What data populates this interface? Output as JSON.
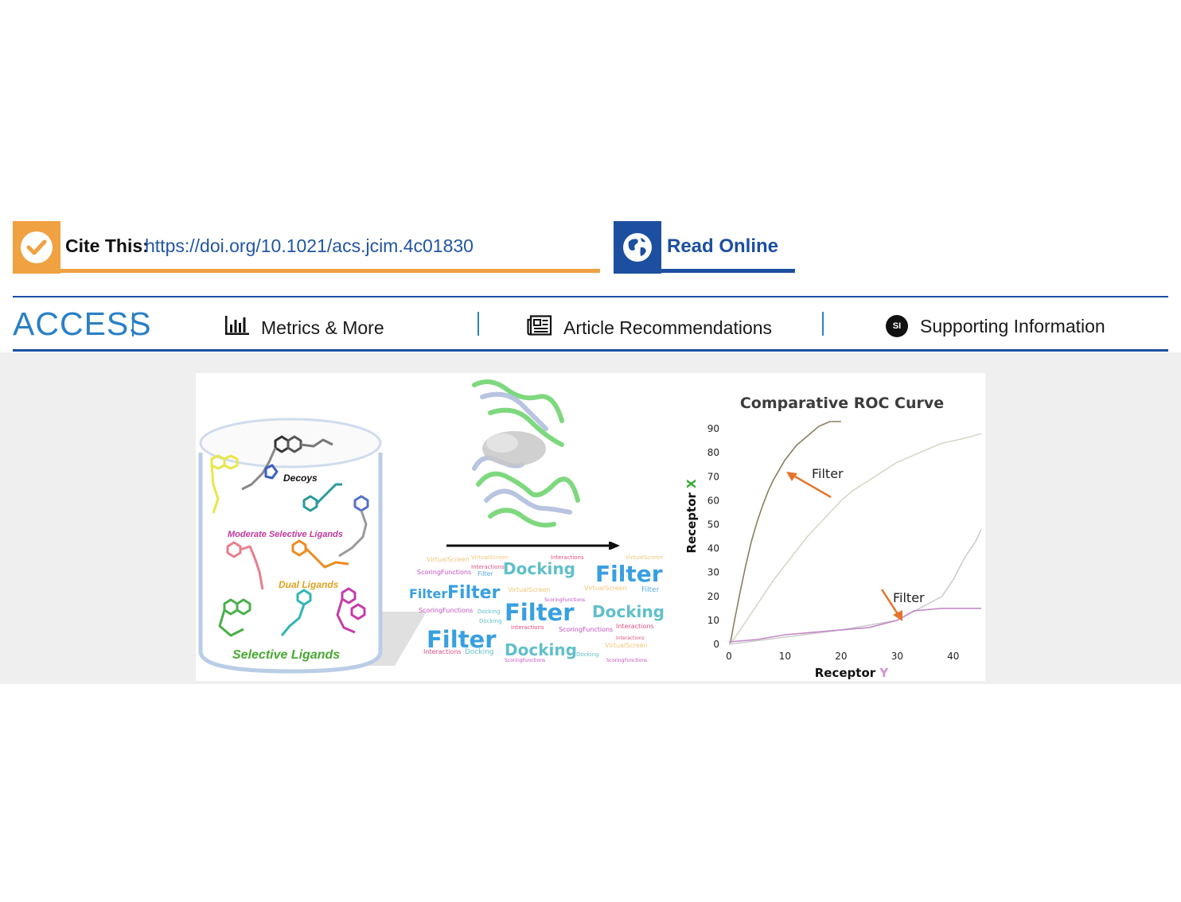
{
  "cite": {
    "label": "Cite This:",
    "doi": "https://doi.org/10.1021/acs.jcim.4c01830"
  },
  "read_online": {
    "label": "Read Online"
  },
  "access": {
    "label": "ACCESS"
  },
  "nav": {
    "metrics": "Metrics & More",
    "recommendations": "Article Recommendations",
    "supporting": "Supporting Information",
    "si_badge": "SI"
  },
  "colors": {
    "orange": "#f0a142",
    "blue": "#1c4fa0",
    "access_blue": "#2b80c4",
    "band_gray": "#efefef"
  },
  "icons": [
    "checkmark-icon",
    "globe-icon",
    "bar-chart-icon",
    "newspaper-icon",
    "si-icon"
  ],
  "toc_graphic": {
    "database": {
      "decoys": "Decoys",
      "moderate": "Moderate Selective Ligands",
      "dual": "Dual Ligands",
      "selective": "Selective Ligands"
    },
    "word_cloud": [
      {
        "text": "VirtualScreen",
        "c": "#f2c77a",
        "s": 8
      },
      {
        "text": "VirtualScreen",
        "c": "#f2c77a",
        "s": 7
      },
      {
        "text": "Interactions",
        "c": "#e0507e",
        "s": 7
      },
      {
        "text": "VirtualScreen",
        "c": "#f2c77a",
        "s": 7
      },
      {
        "text": "Interactions",
        "c": "#e0507e",
        "s": 7
      },
      {
        "text": "ScoringFunctions",
        "c": "#c34fc0",
        "s": 8
      },
      {
        "text": "Filter",
        "c": "#5ba8e0",
        "s": 8
      },
      {
        "text": "Docking",
        "c": "#60c0c8",
        "s": 20
      },
      {
        "text": "Filter",
        "c": "#38a0e0",
        "s": 28
      },
      {
        "text": "Filter",
        "c": "#38a0e0",
        "s": 16
      },
      {
        "text": "Filter",
        "c": "#38a0e0",
        "s": 22
      },
      {
        "text": "VirtualScreen",
        "c": "#f2c77a",
        "s": 8
      },
      {
        "text": "VirtualScreen",
        "c": "#f2c77a",
        "s": 8
      },
      {
        "text": "Filter",
        "c": "#5ba8e0",
        "s": 9
      },
      {
        "text": "ScoringFunctions",
        "c": "#c34fc0",
        "s": 6
      },
      {
        "text": "ScoringFunctions",
        "c": "#c34fc0",
        "s": 8
      },
      {
        "text": "Docking",
        "c": "#60c0c8",
        "s": 7
      },
      {
        "text": "Filter",
        "c": "#38a0e0",
        "s": 29
      },
      {
        "text": "Docking",
        "c": "#60c0c8",
        "s": 20
      },
      {
        "text": "Docking",
        "c": "#60c0c8",
        "s": 7
      },
      {
        "text": "Interactions",
        "c": "#e0507e",
        "s": 7
      },
      {
        "text": "ScoringFunctions",
        "c": "#c34fc0",
        "s": 8
      },
      {
        "text": "Interactions",
        "c": "#e0507e",
        "s": 8
      },
      {
        "text": "Filter",
        "c": "#38a0e0",
        "s": 29
      },
      {
        "text": "Interactions",
        "c": "#e0507e",
        "s": 6
      },
      {
        "text": "VirtualScreen",
        "c": "#f2c77a",
        "s": 8
      },
      {
        "text": "Interactions",
        "c": "#e0507e",
        "s": 8
      },
      {
        "text": "Docking",
        "c": "#60c0c8",
        "s": 9
      },
      {
        "text": "Docking",
        "c": "#60c0c8",
        "s": 20
      },
      {
        "text": "Docking",
        "c": "#60c0c8",
        "s": 7
      },
      {
        "text": "ScoringFunctions",
        "c": "#c34fc0",
        "s": 6
      },
      {
        "text": "ScoringFunctions",
        "c": "#c34fc0",
        "s": 6
      }
    ],
    "roc_annotations": {
      "filter_top": "Filter",
      "filter_bottom": "Filter"
    }
  },
  "chart_data": {
    "type": "line",
    "title": "Comparative ROC Curve",
    "xlabel": "Receptor Y",
    "ylabel": "Receptor X",
    "xlim": [
      0,
      45
    ],
    "ylim": [
      0,
      95
    ],
    "xticks": [
      0,
      10,
      20,
      30,
      40
    ],
    "yticks": [
      0,
      10,
      20,
      30,
      40,
      50,
      60,
      70,
      80,
      90
    ],
    "grid": false,
    "series": [
      {
        "color": "#8a7f60",
        "x": [
          0.2,
          1,
          2,
          3,
          4,
          5,
          6,
          7,
          8,
          9,
          10,
          11,
          12,
          13,
          14,
          15,
          16,
          17,
          18,
          20
        ],
        "y": [
          0,
          10,
          22,
          33,
          43,
          51,
          58,
          64,
          69,
          73,
          77,
          80,
          83,
          85,
          87,
          89,
          91,
          92,
          93,
          93
        ]
      },
      {
        "color": "#d8d6c8",
        "x": [
          0.2,
          2,
          4,
          6,
          8,
          10,
          12,
          14,
          16,
          18,
          20,
          22,
          24,
          26,
          28,
          30,
          32,
          34,
          36,
          38,
          40,
          42,
          45
        ],
        "y": [
          0,
          6,
          13,
          20,
          27,
          33,
          39,
          45,
          50,
          55,
          60,
          64,
          67,
          70,
          73,
          76,
          78,
          80,
          82,
          84,
          85,
          86,
          88
        ]
      },
      {
        "color": "#cccccc",
        "x": [
          0,
          10,
          20,
          30,
          38,
          40,
          42,
          44,
          45
        ],
        "y": [
          0,
          3,
          6,
          10,
          20,
          27,
          36,
          43,
          48
        ]
      },
      {
        "color": "#c58ac9",
        "x": [
          0,
          5,
          10,
          15,
          20,
          25,
          30,
          33,
          38,
          45
        ],
        "y": [
          1,
          2,
          4,
          5,
          6,
          7,
          10,
          14,
          15,
          15
        ]
      }
    ]
  }
}
